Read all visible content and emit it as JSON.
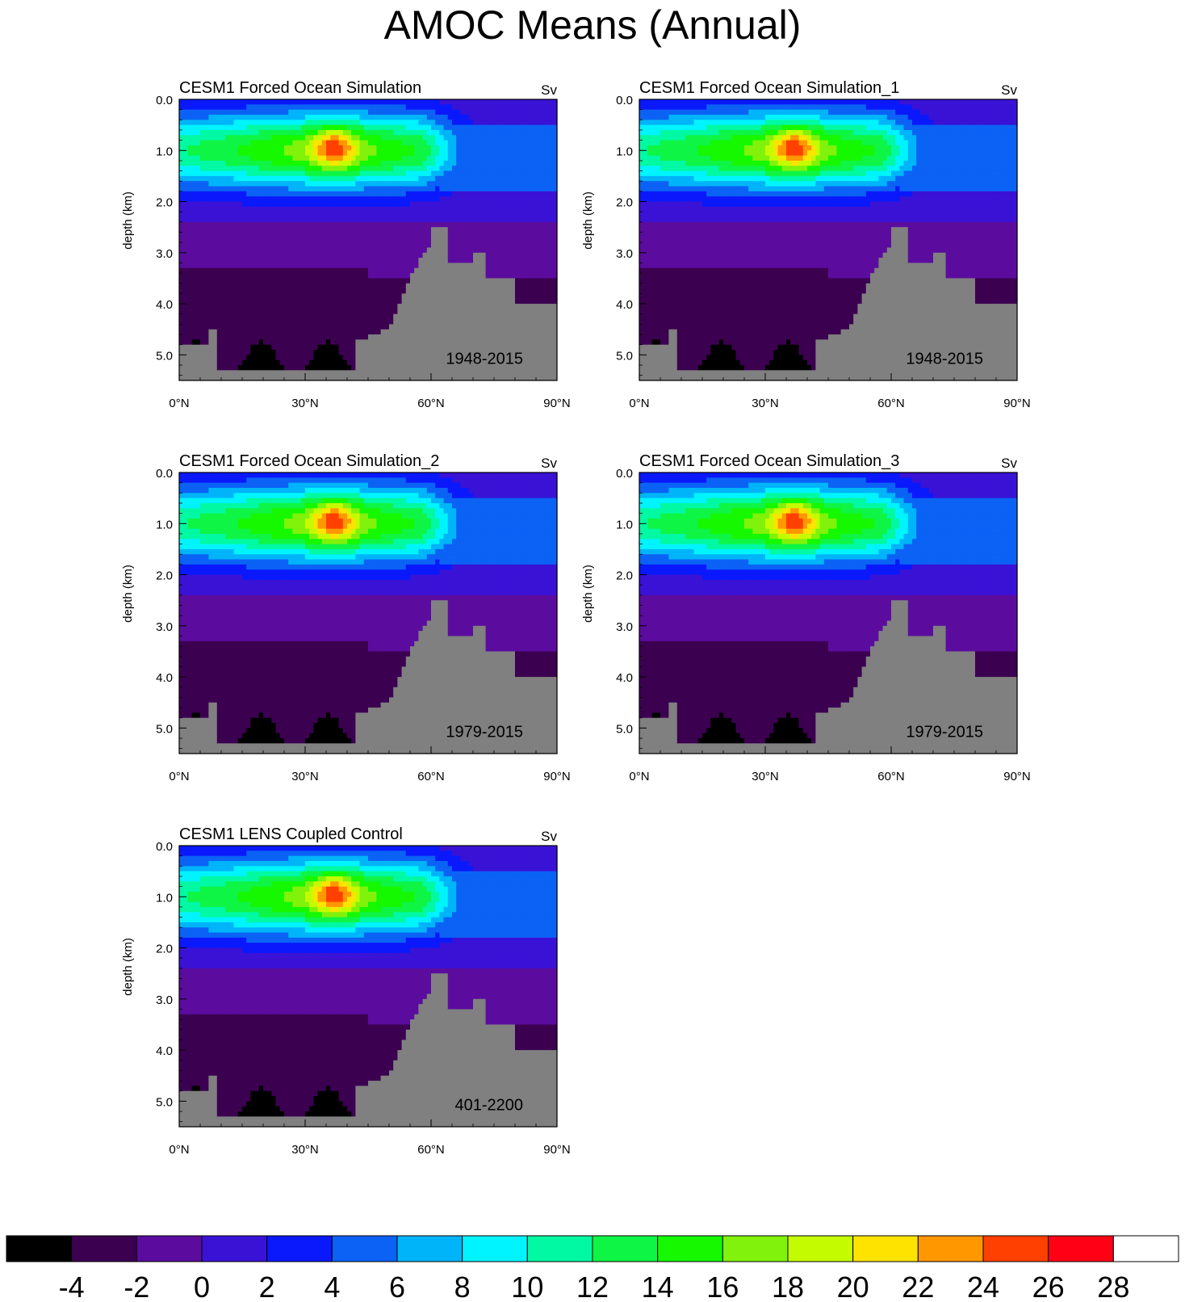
{
  "title": "AMOC Means (Annual)",
  "colors": {
    "land": "#808080",
    "levels": [
      "#000000",
      "#3c0051",
      "#5b0c9e",
      "#3a12d6",
      "#0a19fb",
      "#0b62f5",
      "#00b4f9",
      "#00f4ff",
      "#00f9a2",
      "#0ff545",
      "#15f800",
      "#80f20b",
      "#c5fb00",
      "#ffe300",
      "#ff9700",
      "#ff4000",
      "#ff0014",
      "#ffffff"
    ]
  },
  "colorbar": {
    "labels": [
      "-4",
      "-2",
      "0",
      "2",
      "4",
      "6",
      "8",
      "10",
      "12",
      "14",
      "16",
      "18",
      "20",
      "22",
      "24",
      "26",
      "28"
    ]
  },
  "chart_data": [
    {
      "type": "heatmap",
      "title": "CESM1 Forced Ocean Simulation",
      "units": "Sv",
      "period": "1948-2015",
      "ylabel": "depth (km)",
      "x_ticks": [
        "0°N",
        "30°N",
        "60°N",
        "90°N"
      ],
      "y_ticks": [
        "0.0",
        "1.0",
        "2.0",
        "3.0",
        "4.0",
        "5.0"
      ],
      "xlim": [
        0,
        90
      ],
      "ylim": [
        0,
        5.5
      ],
      "max_sv": 26
    },
    {
      "type": "heatmap",
      "title": "CESM1 Forced Ocean Simulation_1",
      "units": "Sv",
      "period": "1948-2015",
      "ylabel": "depth (km)",
      "x_ticks": [
        "0°N",
        "30°N",
        "60°N",
        "90°N"
      ],
      "y_ticks": [
        "0.0",
        "1.0",
        "2.0",
        "3.0",
        "4.0",
        "5.0"
      ],
      "xlim": [
        0,
        90
      ],
      "ylim": [
        0,
        5.5
      ],
      "max_sv": 26
    },
    {
      "type": "heatmap",
      "title": "CESM1 Forced Ocean Simulation_2",
      "units": "Sv",
      "period": "1979-2015",
      "ylabel": "depth (km)",
      "x_ticks": [
        "0°N",
        "30°N",
        "60°N",
        "90°N"
      ],
      "y_ticks": [
        "0.0",
        "1.0",
        "2.0",
        "3.0",
        "4.0",
        "5.0"
      ],
      "xlim": [
        0,
        90
      ],
      "ylim": [
        0,
        5.5
      ],
      "max_sv": 26
    },
    {
      "type": "heatmap",
      "title": "CESM1 Forced Ocean Simulation_3",
      "units": "Sv",
      "period": "1979-2015",
      "ylabel": "depth (km)",
      "x_ticks": [
        "0°N",
        "30°N",
        "60°N",
        "90°N"
      ],
      "y_ticks": [
        "0.0",
        "1.0",
        "2.0",
        "3.0",
        "4.0",
        "5.0"
      ],
      "xlim": [
        0,
        90
      ],
      "ylim": [
        0,
        5.5
      ],
      "max_sv": 26
    },
    {
      "type": "heatmap",
      "title": "CESM1 LENS Coupled Control",
      "units": "Sv",
      "period": "401-2200",
      "ylabel": "depth (km)",
      "x_ticks": [
        "0°N",
        "30°N",
        "60°N",
        "90°N"
      ],
      "y_ticks": [
        "0.0",
        "1.0",
        "2.0",
        "3.0",
        "4.0",
        "5.0"
      ],
      "xlim": [
        0,
        90
      ],
      "ylim": [
        0,
        5.5
      ],
      "max_sv": 26
    }
  ]
}
